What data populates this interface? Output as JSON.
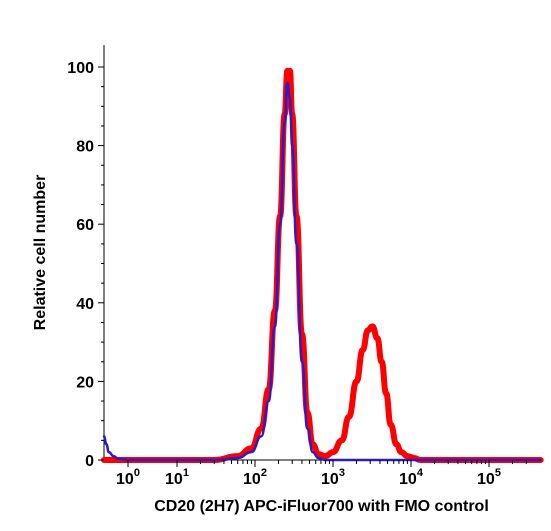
{
  "chart_data": {
    "type": "line",
    "title": "",
    "xlabel": "CD20 (2H7) APC-iFluor700 with FMO control",
    "ylabel": "Relative cell number",
    "xscale": "biexponential",
    "xlim": [
      0.5,
      460000
    ],
    "ylim": [
      0,
      100
    ],
    "grid": false,
    "legend": "none",
    "y_ticks": [
      {
        "value": 0,
        "label": "0"
      },
      {
        "value": 20,
        "label": "20"
      },
      {
        "value": 40,
        "label": "40"
      },
      {
        "value": 60,
        "label": "60"
      },
      {
        "value": 80,
        "label": "80"
      },
      {
        "value": 100,
        "label": "100"
      }
    ],
    "x_ticks": [
      {
        "value": 1,
        "base": "10",
        "exp": "0"
      },
      {
        "value": 10,
        "base": "10",
        "exp": "1"
      },
      {
        "value": 100,
        "base": "10",
        "exp": "2"
      },
      {
        "value": 1000,
        "base": "10",
        "exp": "3"
      },
      {
        "value": 10000,
        "base": "10",
        "exp": "4"
      },
      {
        "value": 100000,
        "base": "10",
        "exp": "5"
      }
    ],
    "series": [
      {
        "color": "#ff0000",
        "x": [
          0.5,
          30,
          60,
          90,
          120,
          150,
          180,
          210,
          240,
          260,
          280,
          300,
          340,
          400,
          470,
          550,
          650,
          800,
          1000,
          1300,
          1600,
          2000,
          2400,
          2800,
          3200,
          3700,
          4200,
          4800,
          5500,
          6500,
          7500,
          9000,
          11000,
          13000,
          20000,
          50000,
          100000,
          460000
        ],
        "y": [
          0,
          0,
          1,
          3,
          8,
          18,
          38,
          62,
          88,
          99,
          99,
          88,
          62,
          32,
          12,
          4,
          1.5,
          1,
          2,
          5,
          11,
          20,
          28,
          33,
          34,
          31,
          25,
          17,
          9,
          4,
          2,
          1,
          0.5,
          0,
          0,
          0,
          0,
          0
        ]
      },
      {
        "color": "#2a1cc8",
        "x": [
          0.5,
          0.55,
          0.6,
          0.7,
          0.8,
          1,
          30,
          60,
          90,
          120,
          150,
          180,
          210,
          240,
          260,
          280,
          300,
          340,
          400,
          470,
          550,
          650,
          800,
          1000,
          2000,
          10000,
          100000,
          460000
        ],
        "y": [
          6,
          4,
          2,
          1,
          0.3,
          0,
          0,
          0.5,
          2,
          6,
          15,
          34,
          60,
          86,
          96,
          92,
          80,
          55,
          25,
          8,
          2,
          0.5,
          0,
          0,
          0,
          0,
          0,
          0
        ]
      }
    ]
  }
}
